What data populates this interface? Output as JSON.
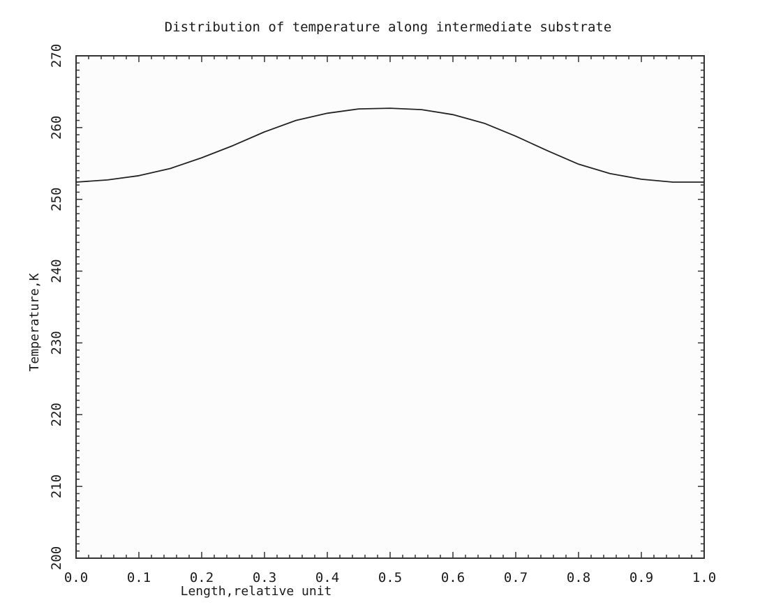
{
  "colors": {
    "background": "#ffffff",
    "plot_background": "#fcfcfc",
    "line": "#222222",
    "axis": "#333333"
  },
  "chart_data": {
    "type": "line",
    "title": "Distribution of temperature along intermediate substrate",
    "xlabel": "Length,relative unit",
    "ylabel": "Temperature,K",
    "xlim": [
      0.0,
      1.0
    ],
    "ylim": [
      200,
      270
    ],
    "x_ticks": [
      0.0,
      0.1,
      0.2,
      0.3,
      0.4,
      0.5,
      0.6,
      0.7,
      0.8,
      0.9,
      1.0
    ],
    "x_tick_labels": [
      "0.0",
      "0.1",
      "0.2",
      "0.3",
      "0.4",
      "0.5",
      "0.6",
      "0.7",
      "0.8",
      "0.9",
      "1.0"
    ],
    "y_ticks": [
      200,
      210,
      220,
      230,
      240,
      250,
      260,
      270
    ],
    "y_tick_labels": [
      "200",
      "210",
      "220",
      "230",
      "240",
      "250",
      "260",
      "270"
    ],
    "grid": false,
    "series": [
      {
        "x": [
          0.0,
          0.05,
          0.1,
          0.15,
          0.2,
          0.25,
          0.3,
          0.35,
          0.4,
          0.45,
          0.5,
          0.55,
          0.6,
          0.65,
          0.7,
          0.75,
          0.8,
          0.85,
          0.9,
          0.95,
          1.0
        ],
        "y": [
          252.4,
          252.7,
          253.3,
          254.3,
          255.8,
          257.5,
          259.4,
          261.0,
          262.0,
          262.6,
          262.7,
          262.5,
          261.8,
          260.6,
          258.8,
          256.8,
          254.9,
          253.6,
          252.8,
          252.4,
          252.4
        ]
      }
    ]
  }
}
